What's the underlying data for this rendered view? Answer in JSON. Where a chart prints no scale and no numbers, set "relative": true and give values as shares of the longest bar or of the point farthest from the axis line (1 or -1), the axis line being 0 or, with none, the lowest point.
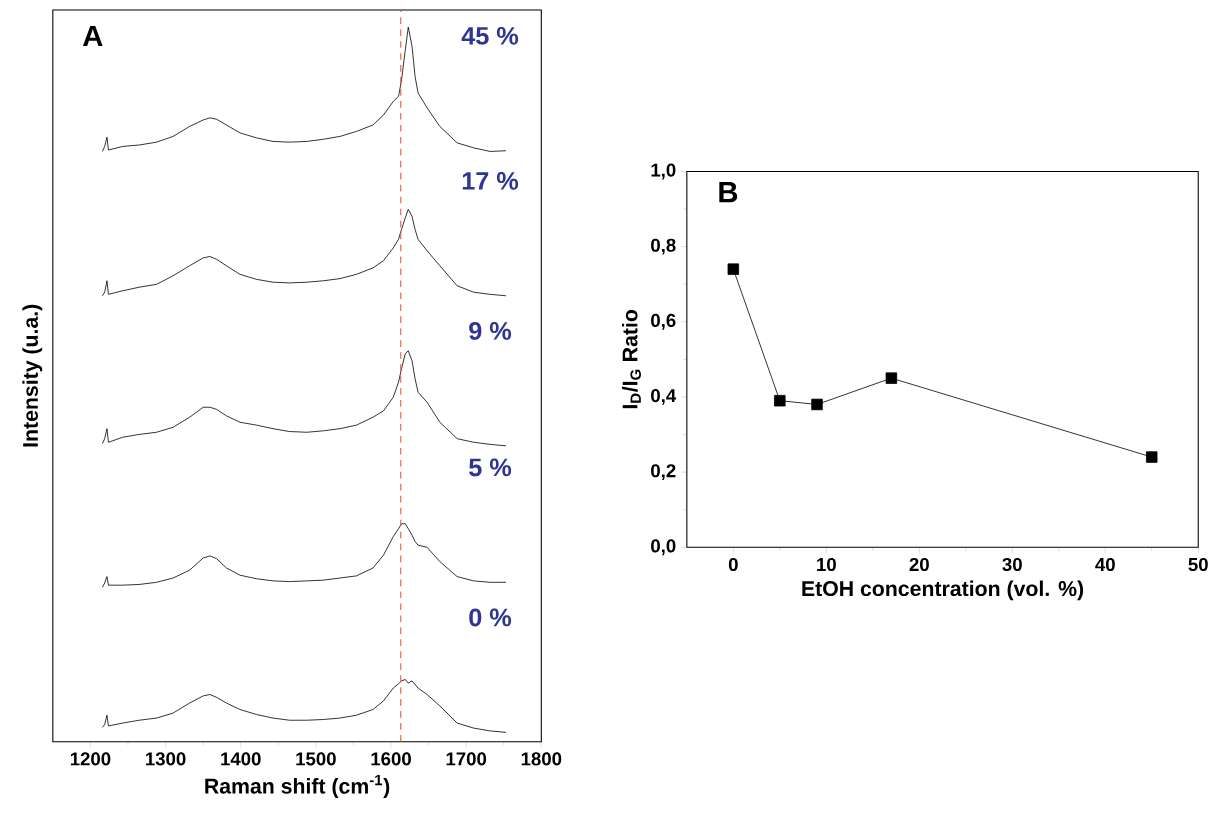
{
  "chart_data": [
    {
      "type": "line",
      "relative": true,
      "xlabel": "Raman shift (cm$^{-1}$)",
      "ylabel": "Intensity (u.a.)",
      "annotations": [
        "A",
        "45 %",
        "17 %",
        "9 %",
        "5 %",
        "0 %"
      ],
      "xlim": [
        1150,
        1800
      ],
      "xticks": [
        1200,
        1300,
        1400,
        1500,
        1600,
        1700,
        1800
      ],
      "x": [
        1216,
        1219,
        1222,
        1224,
        1243,
        1265,
        1288,
        1310,
        1332,
        1350,
        1359,
        1368,
        1381,
        1399,
        1421,
        1443,
        1465,
        1488,
        1510,
        1532,
        1554,
        1576,
        1590,
        1603,
        1610,
        1614,
        1619,
        1623,
        1628,
        1632,
        1636,
        1648,
        1665,
        1688,
        1710,
        1732,
        1753
      ],
      "ref_lines": [
        {
          "axis": "x",
          "value": 1613,
          "color": "#f0522e",
          "line_style": "dashed"
        }
      ],
      "series": [
        {
          "color": "#000000",
          "values": [
            0.826,
            0.833,
            0.846,
            0.828,
            0.833,
            0.835,
            0.839,
            0.847,
            0.861,
            0.87,
            0.873,
            0.871,
            0.863,
            0.852,
            0.845,
            0.84,
            0.839,
            0.84,
            0.843,
            0.847,
            0.854,
            0.863,
            0.877,
            0.896,
            0.903,
            0.926,
            0.968,
            1.0,
            0.973,
            0.931,
            0.908,
            0.887,
            0.861,
            0.838,
            0.831,
            0.826,
            0.827
          ]
        },
        {
          "color": "#000000",
          "values": [
            0.624,
            0.629,
            0.645,
            0.626,
            0.631,
            0.636,
            0.64,
            0.652,
            0.666,
            0.677,
            0.679,
            0.675,
            0.666,
            0.654,
            0.647,
            0.643,
            0.642,
            0.643,
            0.645,
            0.648,
            0.654,
            0.663,
            0.673,
            0.691,
            0.703,
            0.717,
            0.733,
            0.745,
            0.735,
            0.717,
            0.703,
            0.687,
            0.666,
            0.638,
            0.629,
            0.626,
            0.624
          ]
        },
        {
          "color": "#000000",
          "values": [
            0.417,
            0.424,
            0.438,
            0.419,
            0.426,
            0.43,
            0.433,
            0.44,
            0.454,
            0.468,
            0.468,
            0.465,
            0.456,
            0.447,
            0.443,
            0.438,
            0.434,
            0.433,
            0.435,
            0.438,
            0.443,
            0.454,
            0.463,
            0.482,
            0.503,
            0.522,
            0.543,
            0.547,
            0.533,
            0.508,
            0.489,
            0.475,
            0.447,
            0.424,
            0.419,
            0.416,
            0.414
          ]
        },
        {
          "color": "#000000",
          "values": [
            0.216,
            0.222,
            0.231,
            0.219,
            0.219,
            0.22,
            0.223,
            0.229,
            0.24,
            0.257,
            0.26,
            0.256,
            0.243,
            0.233,
            0.228,
            0.225,
            0.224,
            0.225,
            0.226,
            0.229,
            0.232,
            0.243,
            0.261,
            0.287,
            0.298,
            0.305,
            0.305,
            0.298,
            0.289,
            0.28,
            0.275,
            0.272,
            0.252,
            0.231,
            0.225,
            0.223,
            0.223
          ]
        },
        {
          "color": "#000000",
          "values": [
            0.02,
            0.024,
            0.037,
            0.022,
            0.026,
            0.03,
            0.033,
            0.04,
            0.054,
            0.064,
            0.066,
            0.062,
            0.054,
            0.045,
            0.038,
            0.033,
            0.03,
            0.03,
            0.031,
            0.033,
            0.037,
            0.045,
            0.057,
            0.075,
            0.081,
            0.085,
            0.087,
            0.082,
            0.085,
            0.08,
            0.075,
            0.066,
            0.05,
            0.026,
            0.019,
            0.015,
            0.013
          ]
        }
      ]
    },
    {
      "type": "line",
      "xlabel": "EtOH concentration (vol. %)",
      "ylabel": "I$_{D}$/I$_{G}$ Ratio",
      "annotations": [
        "B"
      ],
      "xlim": [
        -5,
        50
      ],
      "xticks": [
        0,
        10,
        20,
        30,
        40,
        50
      ],
      "ylim": [
        0,
        1
      ],
      "yticks": [
        {
          "value": 0,
          "label": "0,0"
        },
        {
          "value": 0.2,
          "label": "0,2"
        },
        {
          "value": 0.4,
          "label": "0,4"
        },
        {
          "value": 0.6,
          "label": "0,6"
        },
        {
          "value": 0.8,
          "label": "0,8"
        },
        {
          "value": 1,
          "label": "1,0"
        }
      ],
      "marker": "square",
      "x": [
        0,
        5,
        9,
        17,
        45
      ],
      "series": [
        {
          "color": "#000000",
          "values": [
            0.74,
            0.39,
            0.38,
            0.45,
            0.24
          ]
        }
      ]
    }
  ]
}
